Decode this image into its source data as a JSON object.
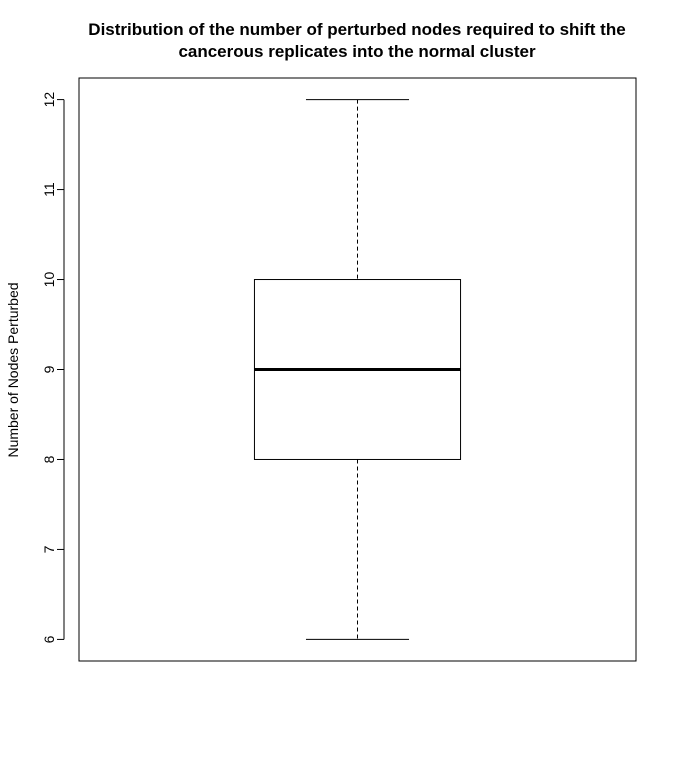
{
  "chart_data": {
    "type": "boxplot",
    "title_lines": [
      "Distribution of the number of perturbed nodes required to shift the",
      "cancerous replicates into the normal cluster"
    ],
    "xlabel": "",
    "ylabel": "Number of Nodes Perturbed",
    "ylim": [
      5.76,
      12.24
    ],
    "yticks": [
      6,
      7,
      8,
      9,
      10,
      11,
      12
    ],
    "ytick_labels": [
      "6",
      "7",
      "8",
      "9",
      "10",
      "11",
      "12"
    ],
    "boxes": [
      {
        "min": 6,
        "q1": 8,
        "median": 9,
        "q3": 10,
        "max": 12
      }
    ],
    "grid": false,
    "legend": false,
    "colors": {
      "box_fill": "#ffffff",
      "stroke": "#000000",
      "background": "#ffffff"
    }
  }
}
